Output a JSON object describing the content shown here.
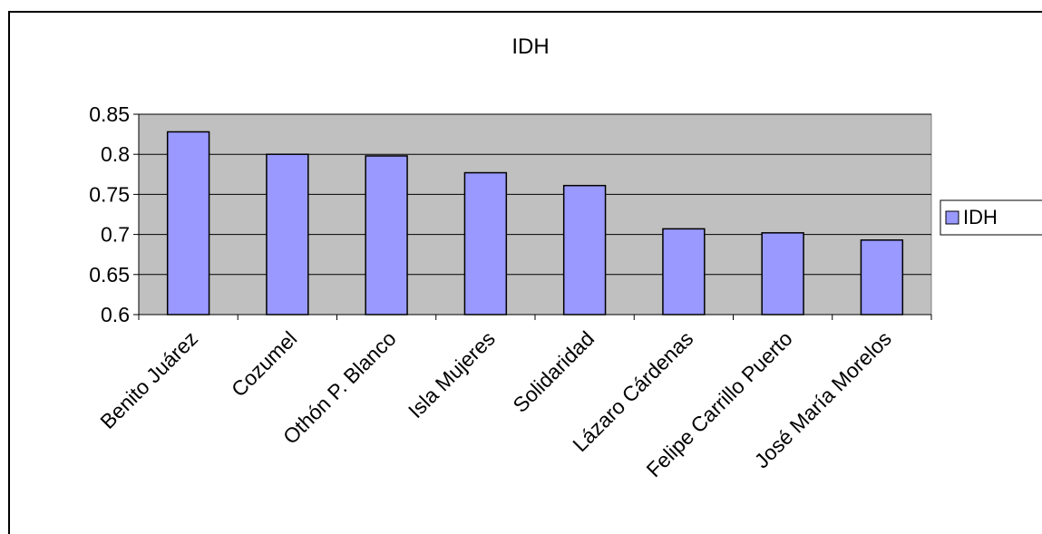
{
  "chart_data": {
    "type": "bar",
    "title": "IDH",
    "categories": [
      "Benito Juárez",
      "Cozumel",
      "Othón P. Blanco",
      "Isla Mujeres",
      "Solidaridad",
      "Lázaro Cárdenas",
      "Felipe Carrillo Puerto",
      "José María Morelos"
    ],
    "series": [
      {
        "name": "IDH",
        "values": [
          0.828,
          0.8,
          0.798,
          0.777,
          0.761,
          0.707,
          0.702,
          0.693
        ]
      }
    ],
    "ylim": [
      0.6,
      0.85
    ],
    "yticks": [
      "0.6",
      "0.65",
      "0.7",
      "0.75",
      "0.8",
      "0.85"
    ],
    "grid": true,
    "legend_position": "right",
    "colors": {
      "plot_background": "#c0c0c0",
      "bar_fill": "#9999ff",
      "bar_stroke": "#000000"
    }
  }
}
